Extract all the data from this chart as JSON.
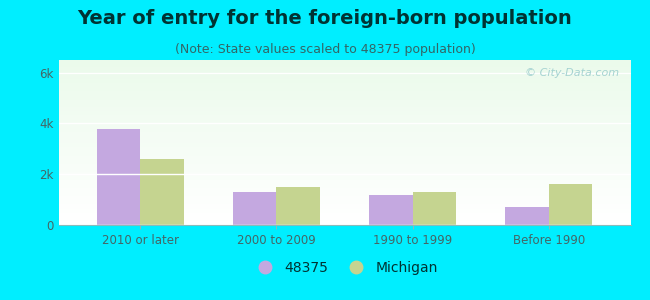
{
  "title": "Year of entry for the foreign-born population",
  "subtitle": "(Note: State values scaled to 48375 population)",
  "categories": [
    "2010 or later",
    "2000 to 2009",
    "1990 to 1999",
    "Before 1990"
  ],
  "values_48375": [
    3800,
    1300,
    1200,
    700
  ],
  "values_michigan": [
    2600,
    1500,
    1300,
    1600
  ],
  "bar_color_48375": "#c4a8e0",
  "bar_color_michigan": "#c5d490",
  "background_color": "#00eeff",
  "ylim": [
    0,
    6500
  ],
  "yticks": [
    0,
    2000,
    4000,
    6000
  ],
  "ytick_labels": [
    "0",
    "2k",
    "4k",
    "6k"
  ],
  "legend_labels": [
    "48375",
    "Michigan"
  ],
  "watermark": "© City-Data.com",
  "title_fontsize": 14,
  "subtitle_fontsize": 9,
  "bar_width": 0.32
}
